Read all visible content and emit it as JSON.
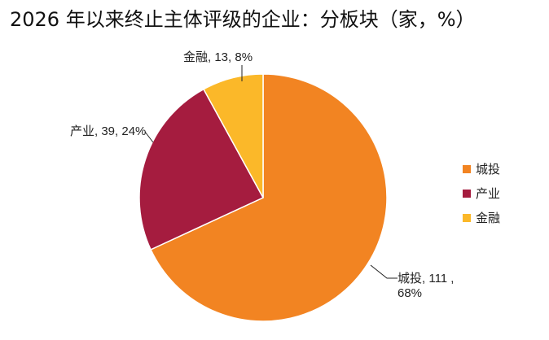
{
  "chart_data": {
    "type": "pie",
    "title": "2026 年以来终止主体评级的企业：分板块（家，%）",
    "categories": [
      "城投",
      "产业",
      "金融"
    ],
    "values": [
      111,
      39,
      13
    ],
    "value_labels": [
      "城投, 111 , 68%",
      "产业, 39, 24%",
      "金融, 13, 8%"
    ],
    "colors": [
      "#F28422",
      "#A51C3F",
      "#FBB829"
    ],
    "legend": "right"
  }
}
